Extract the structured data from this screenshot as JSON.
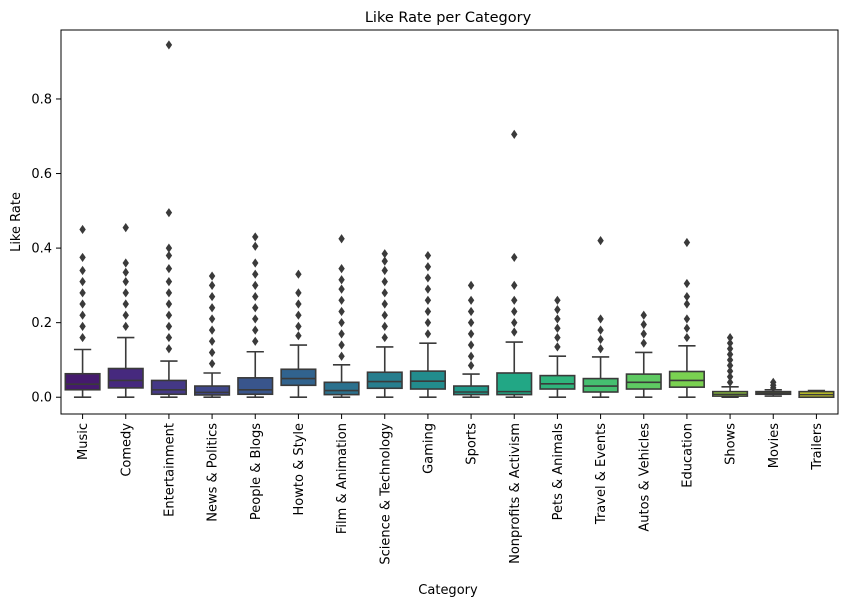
{
  "chart_data": {
    "type": "box",
    "title": "Like Rate per Category",
    "xlabel": "Category",
    "ylabel": "Like Rate",
    "ylim": [
      -0.045,
      0.985
    ],
    "yticks": [
      0.0,
      0.2,
      0.4,
      0.6,
      0.8
    ],
    "ytick_labels": [
      "0.0",
      "0.2",
      "0.4",
      "0.6",
      "0.8"
    ],
    "grid": false,
    "legend": "none",
    "categories": [
      "Music",
      "Comedy",
      "Entertainment",
      "News & Politics",
      "People & Blogs",
      "Howto & Style",
      "Film & Animation",
      "Science & Technology",
      "Gaming",
      "Sports",
      "Nonprofits & Activism",
      "Pets & Animals",
      "Travel & Events",
      "Autos & Vehicles",
      "Education",
      "Shows",
      "Movies",
      "Trailers"
    ],
    "boxes": [
      {
        "category": "Music",
        "color": "#451a6e",
        "whisker_low": 0.0,
        "q1": 0.02,
        "median": 0.035,
        "q3": 0.063,
        "whisker_high": 0.128,
        "outliers": [
          0.16,
          0.19,
          0.22,
          0.25,
          0.28,
          0.31,
          0.34,
          0.375,
          0.45
        ]
      },
      {
        "category": "Comedy",
        "color": "#46297e",
        "whisker_low": 0.0,
        "q1": 0.025,
        "median": 0.045,
        "q3": 0.077,
        "whisker_high": 0.16,
        "outliers": [
          0.19,
          0.22,
          0.25,
          0.28,
          0.31,
          0.335,
          0.36,
          0.455
        ]
      },
      {
        "category": "Entertainment",
        "color": "#443886",
        "whisker_low": 0.0,
        "q1": 0.008,
        "median": 0.02,
        "q3": 0.045,
        "whisker_high": 0.097,
        "outliers": [
          0.13,
          0.16,
          0.19,
          0.22,
          0.25,
          0.28,
          0.31,
          0.345,
          0.38,
          0.4,
          0.495,
          0.945
        ]
      },
      {
        "category": "News & Politics",
        "color": "#3f4789",
        "whisker_low": 0.0,
        "q1": 0.006,
        "median": 0.013,
        "q3": 0.03,
        "whisker_high": 0.065,
        "outliers": [
          0.09,
          0.12,
          0.15,
          0.18,
          0.21,
          0.24,
          0.27,
          0.3,
          0.325
        ]
      },
      {
        "category": "People & Blogs",
        "color": "#39558c",
        "whisker_low": 0.0,
        "q1": 0.008,
        "median": 0.02,
        "q3": 0.052,
        "whisker_high": 0.122,
        "outliers": [
          0.15,
          0.18,
          0.21,
          0.24,
          0.27,
          0.3,
          0.33,
          0.36,
          0.405,
          0.43
        ]
      },
      {
        "category": "Howto & Style",
        "color": "#31638e",
        "whisker_low": 0.0,
        "q1": 0.032,
        "median": 0.05,
        "q3": 0.075,
        "whisker_high": 0.14,
        "outliers": [
          0.165,
          0.19,
          0.22,
          0.25,
          0.28,
          0.33
        ]
      },
      {
        "category": "Film & Animation",
        "color": "#2b718e",
        "whisker_low": 0.0,
        "q1": 0.007,
        "median": 0.018,
        "q3": 0.04,
        "whisker_high": 0.087,
        "outliers": [
          0.11,
          0.14,
          0.17,
          0.2,
          0.23,
          0.26,
          0.29,
          0.315,
          0.345,
          0.425
        ]
      },
      {
        "category": "Science & Technology",
        "color": "#277e8e",
        "whisker_low": 0.0,
        "q1": 0.024,
        "median": 0.042,
        "q3": 0.067,
        "whisker_high": 0.135,
        "outliers": [
          0.16,
          0.19,
          0.22,
          0.25,
          0.28,
          0.31,
          0.34,
          0.365,
          0.385
        ]
      },
      {
        "category": "Gaming",
        "color": "#228c8d",
        "whisker_low": 0.0,
        "q1": 0.022,
        "median": 0.043,
        "q3": 0.07,
        "whisker_high": 0.145,
        "outliers": [
          0.17,
          0.2,
          0.23,
          0.26,
          0.29,
          0.32,
          0.35,
          0.38
        ]
      },
      {
        "category": "Sports",
        "color": "#1f998a",
        "whisker_low": 0.0,
        "q1": 0.007,
        "median": 0.014,
        "q3": 0.03,
        "whisker_high": 0.062,
        "outliers": [
          0.085,
          0.11,
          0.14,
          0.17,
          0.2,
          0.23,
          0.26,
          0.3
        ]
      },
      {
        "category": "Nonprofits & Activism",
        "color": "#22a785",
        "whisker_low": 0.0,
        "q1": 0.007,
        "median": 0.015,
        "q3": 0.065,
        "whisker_high": 0.148,
        "outliers": [
          0.175,
          0.2,
          0.23,
          0.26,
          0.3,
          0.375,
          0.705
        ]
      },
      {
        "category": "Pets & Animals",
        "color": "#2fb47c",
        "whisker_low": 0.0,
        "q1": 0.022,
        "median": 0.036,
        "q3": 0.058,
        "whisker_high": 0.11,
        "outliers": [
          0.135,
          0.16,
          0.185,
          0.21,
          0.235,
          0.26
        ]
      },
      {
        "category": "Travel & Events",
        "color": "#45bf70",
        "whisker_low": 0.0,
        "q1": 0.014,
        "median": 0.03,
        "q3": 0.05,
        "whisker_high": 0.108,
        "outliers": [
          0.13,
          0.155,
          0.18,
          0.21,
          0.42
        ]
      },
      {
        "category": "Autos & Vehicles",
        "color": "#5ec962",
        "whisker_low": 0.0,
        "q1": 0.022,
        "median": 0.04,
        "q3": 0.062,
        "whisker_high": 0.12,
        "outliers": [
          0.145,
          0.17,
          0.195,
          0.22
        ]
      },
      {
        "category": "Education",
        "color": "#7ad151",
        "whisker_low": 0.0,
        "q1": 0.027,
        "median": 0.045,
        "q3": 0.069,
        "whisker_high": 0.138,
        "outliers": [
          0.16,
          0.185,
          0.21,
          0.25,
          0.27,
          0.305,
          0.415
        ]
      },
      {
        "category": "Shows",
        "color": "#9bd93c",
        "whisker_low": 0.0,
        "q1": 0.003,
        "median": 0.008,
        "q3": 0.015,
        "whisker_high": 0.028,
        "outliers": [
          0.04,
          0.055,
          0.07,
          0.085,
          0.1,
          0.115,
          0.13,
          0.145,
          0.16
        ]
      },
      {
        "category": "Movies",
        "color": "#bddf26",
        "whisker_low": 0.003,
        "q1": 0.008,
        "median": 0.011,
        "q3": 0.015,
        "whisker_high": 0.02,
        "outliers": [
          0.025,
          0.032,
          0.04
        ]
      },
      {
        "category": "Trailers",
        "color": "#c4c827",
        "whisker_low": 0.0,
        "q1": 0.0,
        "median": 0.007,
        "q3": 0.015,
        "whisker_high": 0.018,
        "outliers": []
      }
    ]
  }
}
